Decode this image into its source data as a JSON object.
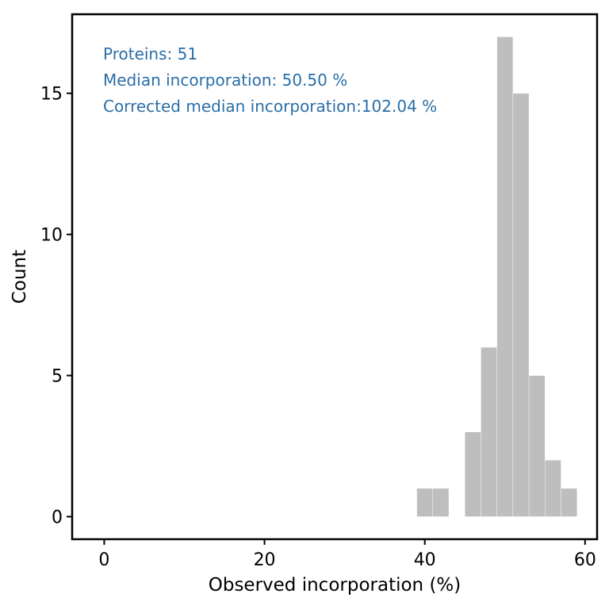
{
  "chart_data": {
    "type": "bar",
    "subtype": "histogram",
    "xlabel": "Observed incorporation (%)",
    "ylabel": "Count",
    "xlim": [
      -4,
      61.5
    ],
    "ylim": [
      -0.8,
      17.8
    ],
    "x_ticks": [
      0,
      20,
      40,
      60
    ],
    "y_ticks": [
      0,
      5,
      10,
      15
    ],
    "bin_width": 2,
    "bins": [
      {
        "start": 39,
        "end": 41,
        "count": 1
      },
      {
        "start": 41,
        "end": 43,
        "count": 1
      },
      {
        "start": 43,
        "end": 45,
        "count": 0
      },
      {
        "start": 45,
        "end": 47,
        "count": 3
      },
      {
        "start": 47,
        "end": 49,
        "count": 6
      },
      {
        "start": 49,
        "end": 51,
        "count": 17
      },
      {
        "start": 51,
        "end": 53,
        "count": 15
      },
      {
        "start": 53,
        "end": 55,
        "count": 5
      },
      {
        "start": 55,
        "end": 57,
        "count": 2
      },
      {
        "start": 57,
        "end": 59,
        "count": 1
      }
    ],
    "grid": false,
    "colors": {
      "bar": "#bebebe",
      "annotation": "#2a6ea7",
      "frame": "#000000"
    },
    "annotations": [
      "Proteins: 51",
      "Median incorporation: 50.50 %",
      "Corrected median incorporation:102.04 %"
    ]
  }
}
